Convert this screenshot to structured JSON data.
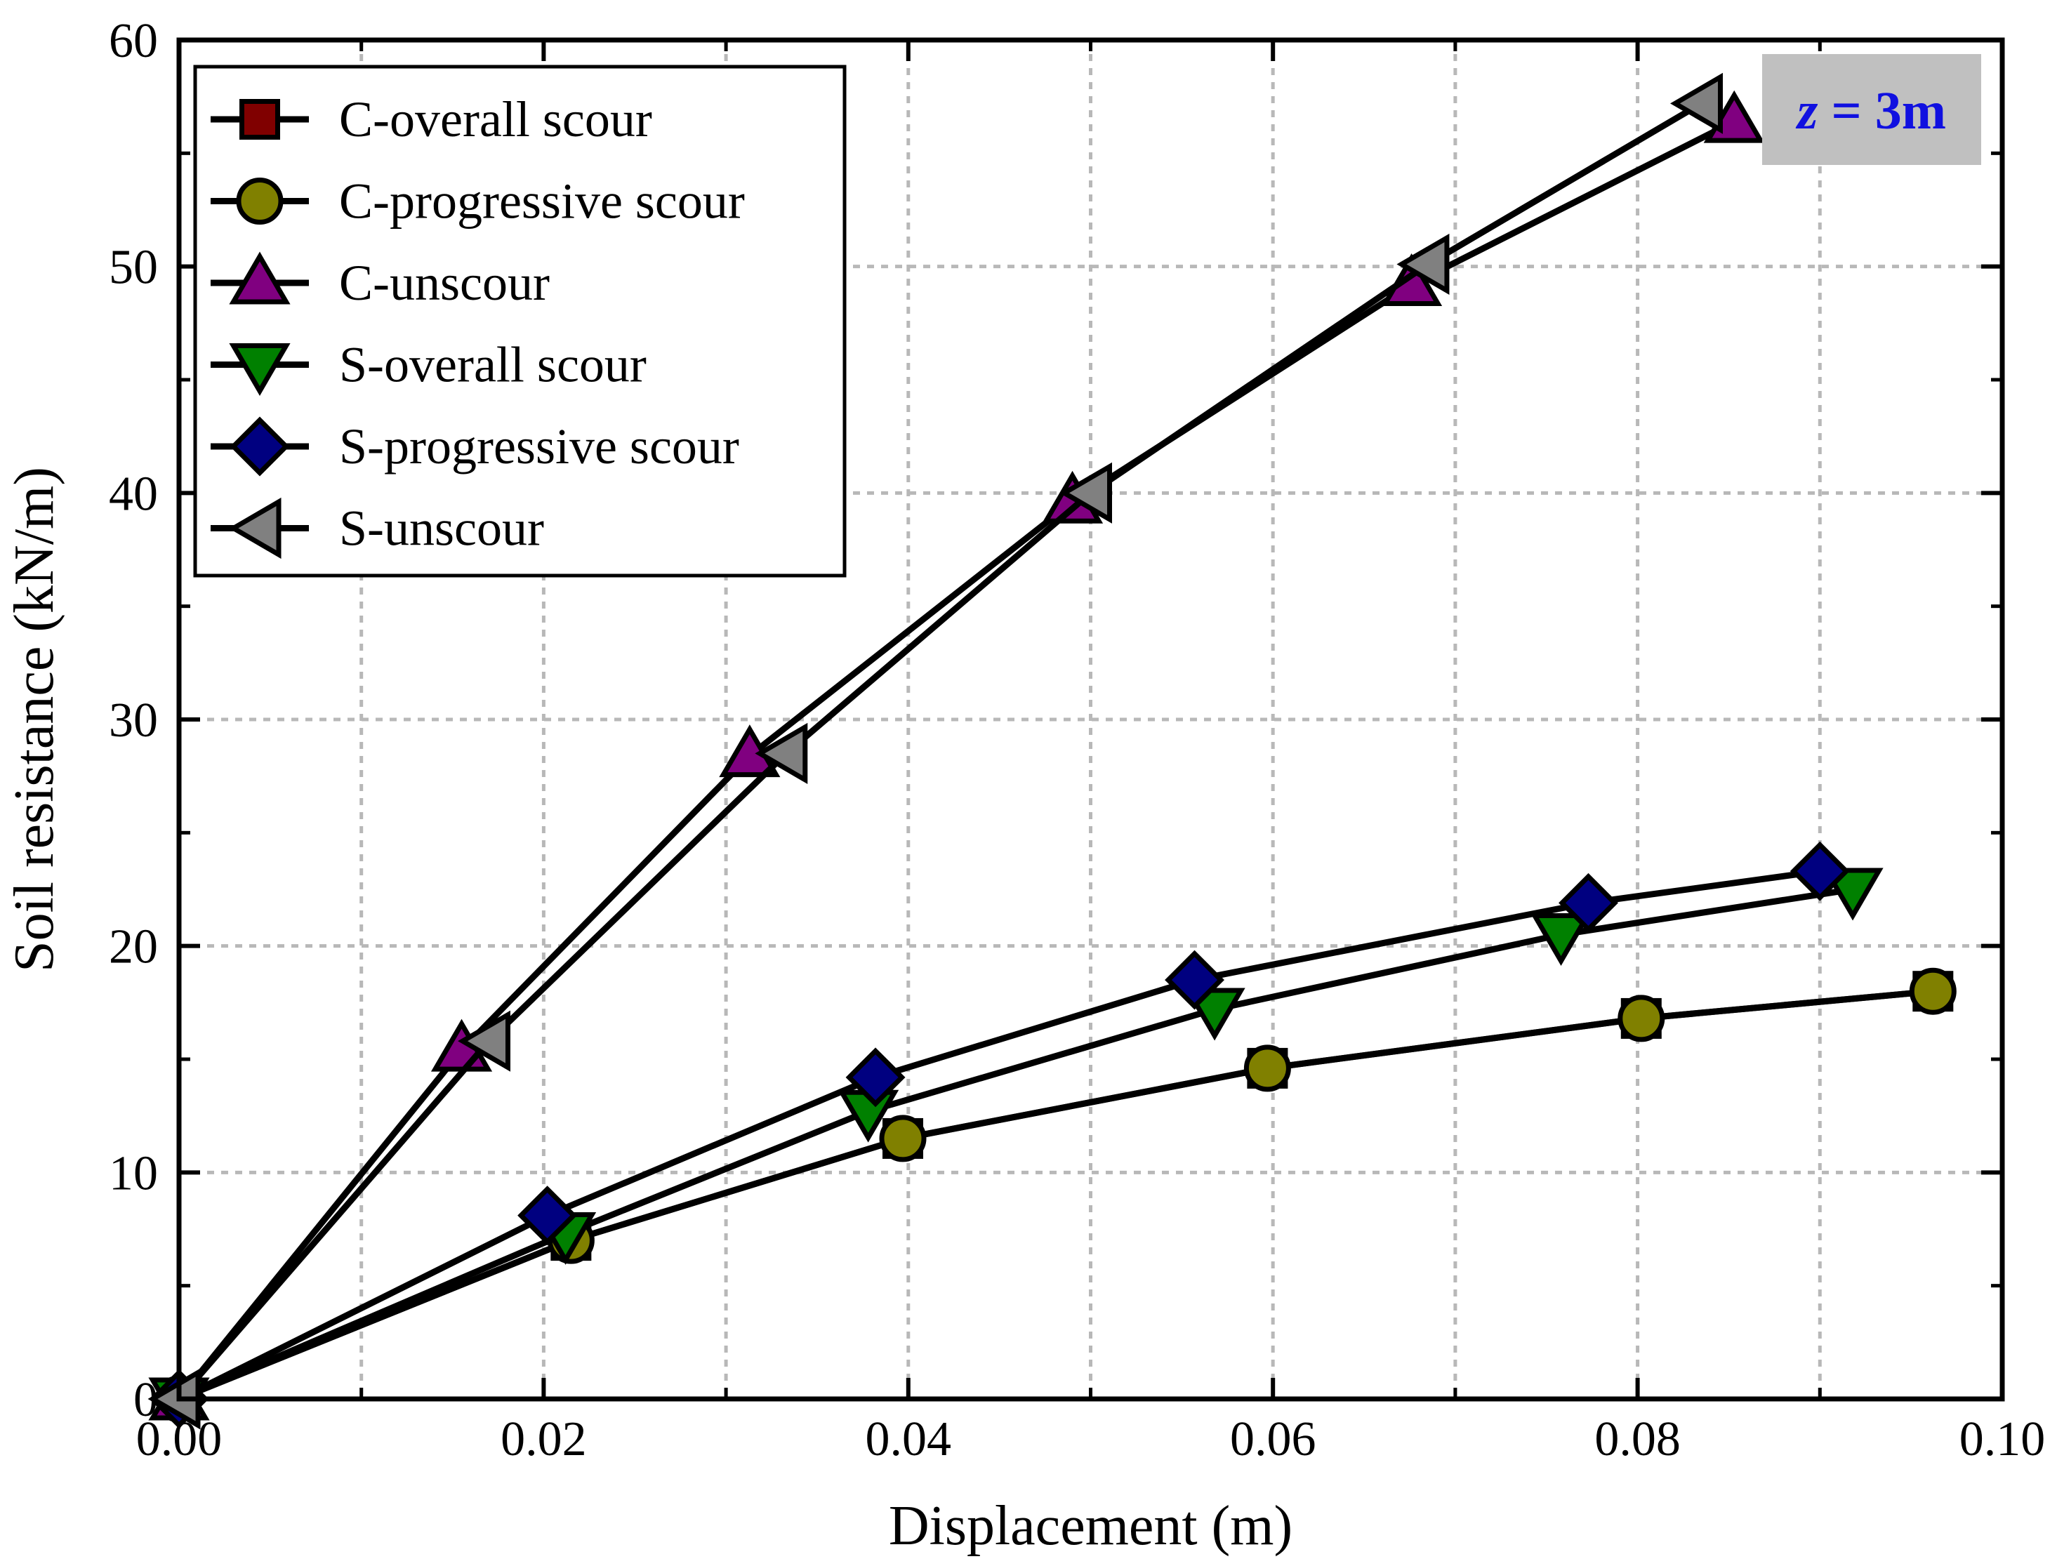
{
  "chart_data": {
    "type": "line",
    "title": "",
    "xlabel": "Displacement (m)",
    "ylabel": "Soil resistance (kN/m)",
    "xlim": [
      0,
      0.1
    ],
    "ylim": [
      0,
      60
    ],
    "xticks": [
      "0.00",
      "0.02",
      "0.04",
      "0.06",
      "0.08",
      "0.10"
    ],
    "yticks": [
      "0",
      "10",
      "20",
      "30",
      "40",
      "50",
      "60"
    ],
    "grid": true,
    "legend_position": "top-left",
    "annotation": {
      "italic": "z",
      "rest": " = 3m",
      "color": "#1010e0",
      "background": "#c0c0c0",
      "position": "top-right"
    },
    "series": [
      {
        "name": "C-overall scour",
        "marker": "square",
        "color": "#800000",
        "x": [
          0,
          0.0215,
          0.0397,
          0.0597,
          0.0802,
          0.0962
        ],
        "y": [
          0,
          7.0,
          11.5,
          14.6,
          16.8,
          18.0
        ]
      },
      {
        "name": "C-progressive scour",
        "marker": "circle",
        "color": "#808000",
        "x": [
          0,
          0.0215,
          0.0397,
          0.0597,
          0.0802,
          0.0962
        ],
        "y": [
          0,
          7.0,
          11.5,
          14.6,
          16.8,
          18.0
        ]
      },
      {
        "name": "C-unscour",
        "marker": "triangle-up",
        "color": "#800080",
        "x": [
          0,
          0.0155,
          0.0313,
          0.049,
          0.0676,
          0.0853
        ],
        "y": [
          0,
          15.4,
          28.4,
          39.6,
          49.2,
          56.4
        ]
      },
      {
        "name": "S-overall scour",
        "marker": "triangle-down",
        "color": "#008000",
        "x": [
          0,
          0.0212,
          0.0378,
          0.0568,
          0.0758,
          0.0918
        ],
        "y": [
          0,
          7.3,
          12.7,
          17.2,
          20.5,
          22.5
        ]
      },
      {
        "name": "S-progressive scour",
        "marker": "diamond",
        "color": "#000080",
        "x": [
          0,
          0.0202,
          0.0382,
          0.0557,
          0.0773,
          0.09
        ],
        "y": [
          0,
          8.1,
          14.2,
          18.5,
          21.9,
          23.3
        ]
      },
      {
        "name": "S-unscour",
        "marker": "triangle-left",
        "color": "#808080",
        "x": [
          0,
          0.017,
          0.0333,
          0.05,
          0.0685,
          0.0835
        ],
        "y": [
          0,
          15.8,
          28.5,
          40.0,
          50.1,
          57.2
        ]
      }
    ]
  }
}
